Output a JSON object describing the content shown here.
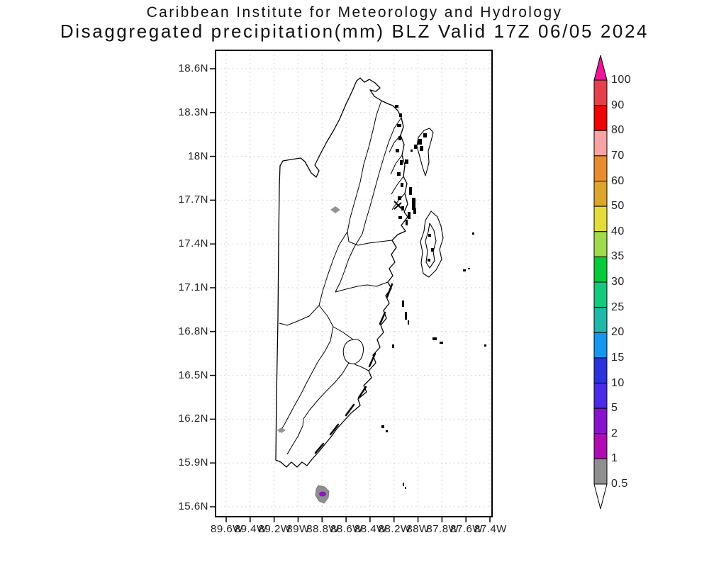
{
  "title": {
    "line1": "Caribbean Institute for Meteorology and Hydrology",
    "line2": "Disaggregated precipitation(mm) BLZ Valid 17Z 06/05 2024"
  },
  "map": {
    "y_tick_labels": [
      "18.6N",
      "18.3N",
      "18N",
      "17.7N",
      "17.4N",
      "17.1N",
      "16.8N",
      "16.5N",
      "16.2N",
      "15.9N",
      "15.6N"
    ],
    "x_tick_labels": [
      "89.6W",
      "89.4W",
      "89.2W",
      "89W",
      "88.8W",
      "88.6W",
      "88.4W",
      "88.2W",
      "88W",
      "87.8W",
      "87.6W",
      "87.4W"
    ],
    "grid_color": "#c9c9c9",
    "outline_color": "#000000",
    "spot_gray": "#949494",
    "spot_purple": "#8813cc",
    "spot_magenta": "#b00cb4"
  },
  "colorbar": {
    "labels": [
      "100",
      "90",
      "80",
      "70",
      "60",
      "50",
      "40",
      "35",
      "30",
      "25",
      "20",
      "15",
      "10",
      "5",
      "2",
      "1",
      "0.5"
    ],
    "segment_colors_top_to_bottom": [
      "#e6404b",
      "#ee0505",
      "#f5a3a3",
      "#ea8c2e",
      "#dca62b",
      "#e3dc39",
      "#9edc4c",
      "#04cb3a",
      "#12ca7e",
      "#1fb9a9",
      "#1597f0",
      "#2a33dc",
      "#4b2be8",
      "#8713cc",
      "#b00cb4",
      "#8f8f8f"
    ],
    "arrow_top_color": "#f01499",
    "arrow_bottom_color": "#ffffff"
  },
  "chart_data": {
    "type": "heatmap",
    "title": "Disaggregated precipitation(mm) BLZ Valid 17Z 06/05 2024",
    "institution": "Caribbean Institute for Meteorology and Hydrology",
    "region": "Belize (BLZ)",
    "valid_time": "17Z 06/05 2024",
    "units": "mm",
    "lon_axis_deg_west": [
      89.6,
      87.4
    ],
    "lat_axis_deg_north": [
      15.6,
      18.6
    ],
    "lon_ticks_deg_west": [
      89.6,
      89.4,
      89.2,
      89.0,
      88.8,
      88.6,
      88.4,
      88.2,
      88.0,
      87.8,
      87.6,
      87.4
    ],
    "lat_ticks_deg_north": [
      18.6,
      18.3,
      18.0,
      17.7,
      17.4,
      17.1,
      16.8,
      16.5,
      16.2,
      15.9,
      15.6
    ],
    "grid": "dotted",
    "legend_position": "right",
    "colorbar_levels_mm": [
      0.5,
      1,
      2,
      5,
      10,
      15,
      20,
      25,
      30,
      35,
      40,
      50,
      60,
      70,
      80,
      90,
      100
    ],
    "colorbar_colors_low_to_high": [
      "#8f8f8f",
      "#b00cb4",
      "#8713cc",
      "#4b2be8",
      "#2a33dc",
      "#1597f0",
      "#1fb9a9",
      "#12ca7e",
      "#04cb3a",
      "#9edc4c",
      "#e3dc39",
      "#dca62b",
      "#ea8c2e",
      "#f5a3a3",
      "#ee0505",
      "#e6404b"
    ],
    "color_above_max": "#f01499",
    "color_below_min": "#ffffff",
    "data_points": [
      {
        "lat_n": 17.63,
        "lon_w": 88.69,
        "precip_mm_range": "0.5-1"
      },
      {
        "lat_n": 16.12,
        "lon_w": 89.14,
        "precip_mm_range": "0.5-1"
      },
      {
        "lat_n": 15.68,
        "lon_w": 88.8,
        "precip_mm_range": "0.5-5",
        "peak_mm_range": "2-5"
      }
    ]
  }
}
